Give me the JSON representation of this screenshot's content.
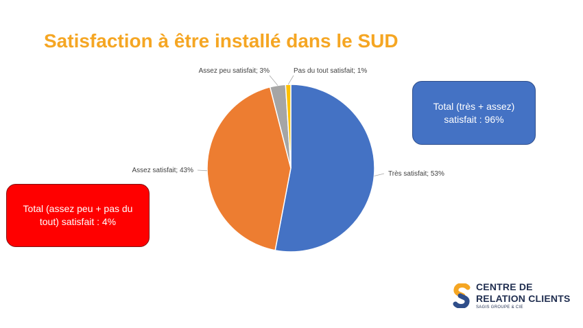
{
  "title": "Satisfaction à être installé dans le SUD",
  "chart_data": {
    "type": "pie",
    "title": "Satisfaction à être installé dans le SUD",
    "slices": [
      {
        "label": "Très satisfait; 53%",
        "value": 53,
        "color": "#4472C4"
      },
      {
        "label": "Assez satisfait; 43%",
        "value": 43,
        "color": "#ED7D31"
      },
      {
        "label": "Assez peu satisfait; 3%",
        "value": 3,
        "color": "#A5A5A5"
      },
      {
        "label": "Pas du tout satisfait; 1%",
        "value": 1,
        "color": "#FFC000"
      }
    ]
  },
  "callouts": {
    "total_satisfied": "Total (très + assez) satisfait : 96%",
    "total_unsatisfied": "Total (assez peu + pas du tout) satisfait : 4%"
  },
  "logo": {
    "line1": "CENTRE DE",
    "line2": "RELATION CLIENTS",
    "subtitle": "SAGIS GROUPE & CIE",
    "colors": {
      "top": "#F5A623",
      "bottom": "#2F4E8A"
    }
  }
}
